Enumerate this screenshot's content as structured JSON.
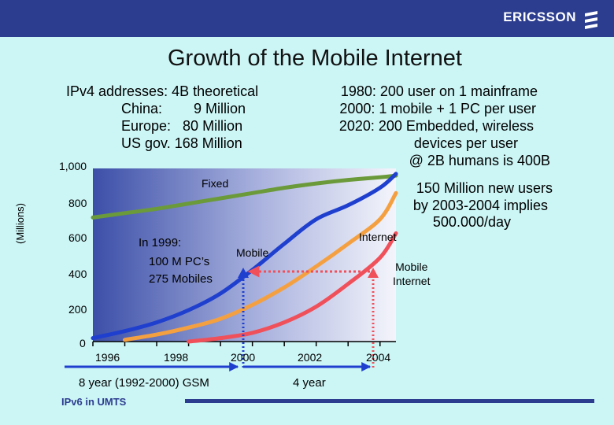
{
  "header": {
    "brand": "ERICSSON",
    "bar_color": "#2c3d8f"
  },
  "title": "Growth of the Mobile Internet",
  "notes": {
    "ipv4": [
      "IPv4 addresses: 4B theoretical",
      "China:        9 Million",
      "Europe:   80 Million",
      "US gov. 168 Million"
    ],
    "history": [
      "1980: 200 user on 1 mainframe",
      "2000: 1 mobile + 1 PC per user",
      "2020: 200 Embedded, wireless",
      "devices per user",
      "@ 2B humans is 400B"
    ],
    "new_users": [
      "150 Million new users",
      "by 2003-2004 implies",
      "500.000/day"
    ],
    "in1999": [
      "In 1999:",
      "100 M PC’s",
      "275 Mobiles"
    ]
  },
  "chart_data": {
    "type": "line",
    "ylabel": "(Millions)",
    "ylim": [
      0,
      1000
    ],
    "yticks": [
      "1,000",
      "800",
      "600",
      "400",
      "200",
      "0"
    ],
    "xticks": [
      "1996",
      "1998",
      "2000",
      "2002",
      "2004"
    ],
    "series": [
      {
        "name": "Fixed",
        "color": "#6b9a3a",
        "x": [
          1995,
          1996,
          1997,
          1998,
          1999,
          2000,
          2001,
          2002,
          2003,
          2004,
          2004.5
        ],
        "y": [
          710,
          735,
          760,
          790,
          820,
          850,
          880,
          905,
          925,
          940,
          950
        ]
      },
      {
        "name": "Mobile",
        "color": "#1f3fcf",
        "x": [
          1995,
          1996,
          1997,
          1998,
          1999,
          2000,
          2001,
          2002,
          2003,
          2004,
          2004.5
        ],
        "y": [
          20,
          60,
          110,
          180,
          275,
          410,
          560,
          700,
          780,
          880,
          960
        ]
      },
      {
        "name": "Internet",
        "color": "#f5a040",
        "x": [
          1996,
          1997,
          1998,
          1999,
          2000,
          2001,
          2002,
          2003,
          2004,
          2004.5
        ],
        "y": [
          10,
          40,
          80,
          130,
          210,
          310,
          430,
          560,
          700,
          850
        ]
      },
      {
        "name": "Mobile Internet",
        "color": "#f0505a",
        "x": [
          1998,
          1999,
          2000,
          2001,
          2002,
          2003,
          2004,
          2004.5
        ],
        "y": [
          0,
          20,
          50,
          110,
          200,
          330,
          480,
          620
        ]
      }
    ],
    "annotations": {
      "gsm": "8 year (1992-2000) GSM",
      "four_year": "4 year",
      "ipv6": "IPv6 in UMTS"
    }
  }
}
